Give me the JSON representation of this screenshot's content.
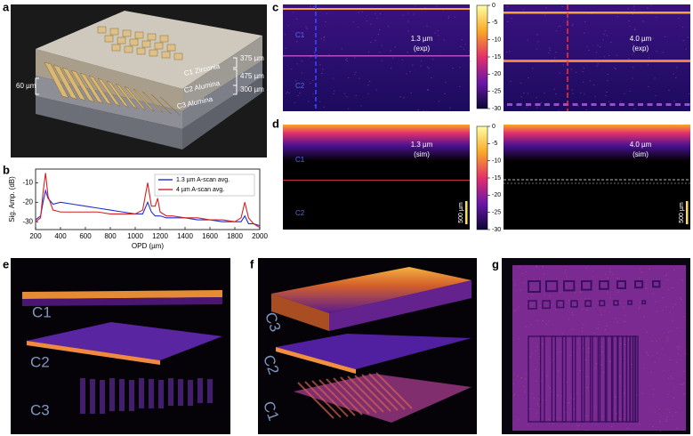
{
  "panels": {
    "a": {
      "label": "a",
      "thicknesses": [
        "375 µm",
        "475 µm",
        "300 µm"
      ],
      "pitch": "60 µm",
      "layers": [
        "C1 Zirconia",
        "C2 Alumina",
        "C3 Alumina"
      ]
    },
    "b": {
      "label": "b"
    },
    "c": {
      "label": "c",
      "layers": [
        "C1",
        "C2"
      ],
      "left": [
        "1.3 µm",
        "(exp)"
      ],
      "right": [
        "4.0 µm",
        "(exp)"
      ],
      "colorbar": [
        0,
        -5,
        -10,
        -15,
        -20,
        -25,
        -30
      ]
    },
    "d": {
      "label": "d",
      "layers": [
        "C1",
        "C2"
      ],
      "left": [
        "1.3 µm",
        "(sim)"
      ],
      "right": [
        "4.0 µm",
        "(sim)"
      ],
      "colorbar": [
        0,
        -5,
        -10,
        -15,
        -20,
        -25,
        -30
      ],
      "scale": "500 µm"
    },
    "e": {
      "label": "e",
      "layers": [
        "C1",
        "C2",
        "C3"
      ]
    },
    "f": {
      "label": "f",
      "layers": [
        "C3",
        "C2",
        "C1"
      ]
    },
    "g": {
      "label": "g"
    }
  },
  "chart_data": {
    "type": "line",
    "ylabel": "Sig. Amp. (dB)",
    "xlabel": "OPD (µm)",
    "x": [
      200,
      240,
      260,
      280,
      300,
      340,
      400,
      500,
      600,
      700,
      800,
      900,
      1000,
      1060,
      1100,
      1130,
      1160,
      1180,
      1200,
      1250,
      1300,
      1400,
      1500,
      1600,
      1700,
      1800,
      1850,
      1880,
      1910,
      1950,
      2000
    ],
    "series": [
      {
        "name": "1.3 µm A-scan avg.",
        "color": "#1f2fd0",
        "values": [
          -29,
          -27,
          -20,
          -14,
          -18,
          -21,
          -20,
          -21,
          -22,
          -23,
          -24,
          -25,
          -26,
          -26,
          -20,
          -25,
          -27,
          -27,
          -27,
          -28,
          -28,
          -28,
          -29,
          -29,
          -30,
          -30,
          -30,
          -27,
          -31,
          -31,
          -32
        ]
      },
      {
        "name": "4 µm A-scan avg.",
        "color": "#d42020",
        "values": [
          -30,
          -28,
          -15,
          -5,
          -17,
          -24,
          -25,
          -25,
          -25,
          -25,
          -26,
          -26,
          -26,
          -24,
          -10,
          -22,
          -22,
          -18,
          -25,
          -27,
          -27,
          -28,
          -28,
          -29,
          -29,
          -30,
          -28,
          -20,
          -28,
          -31,
          -33
        ]
      }
    ],
    "xlim": [
      200,
      2000
    ],
    "xticks": [
      200,
      400,
      600,
      800,
      1000,
      1200,
      1400,
      1600,
      1800,
      2000
    ],
    "ylim": [
      -34,
      -3
    ],
    "yticks": [
      -10,
      -20,
      -30
    ],
    "legend": "upper right"
  }
}
